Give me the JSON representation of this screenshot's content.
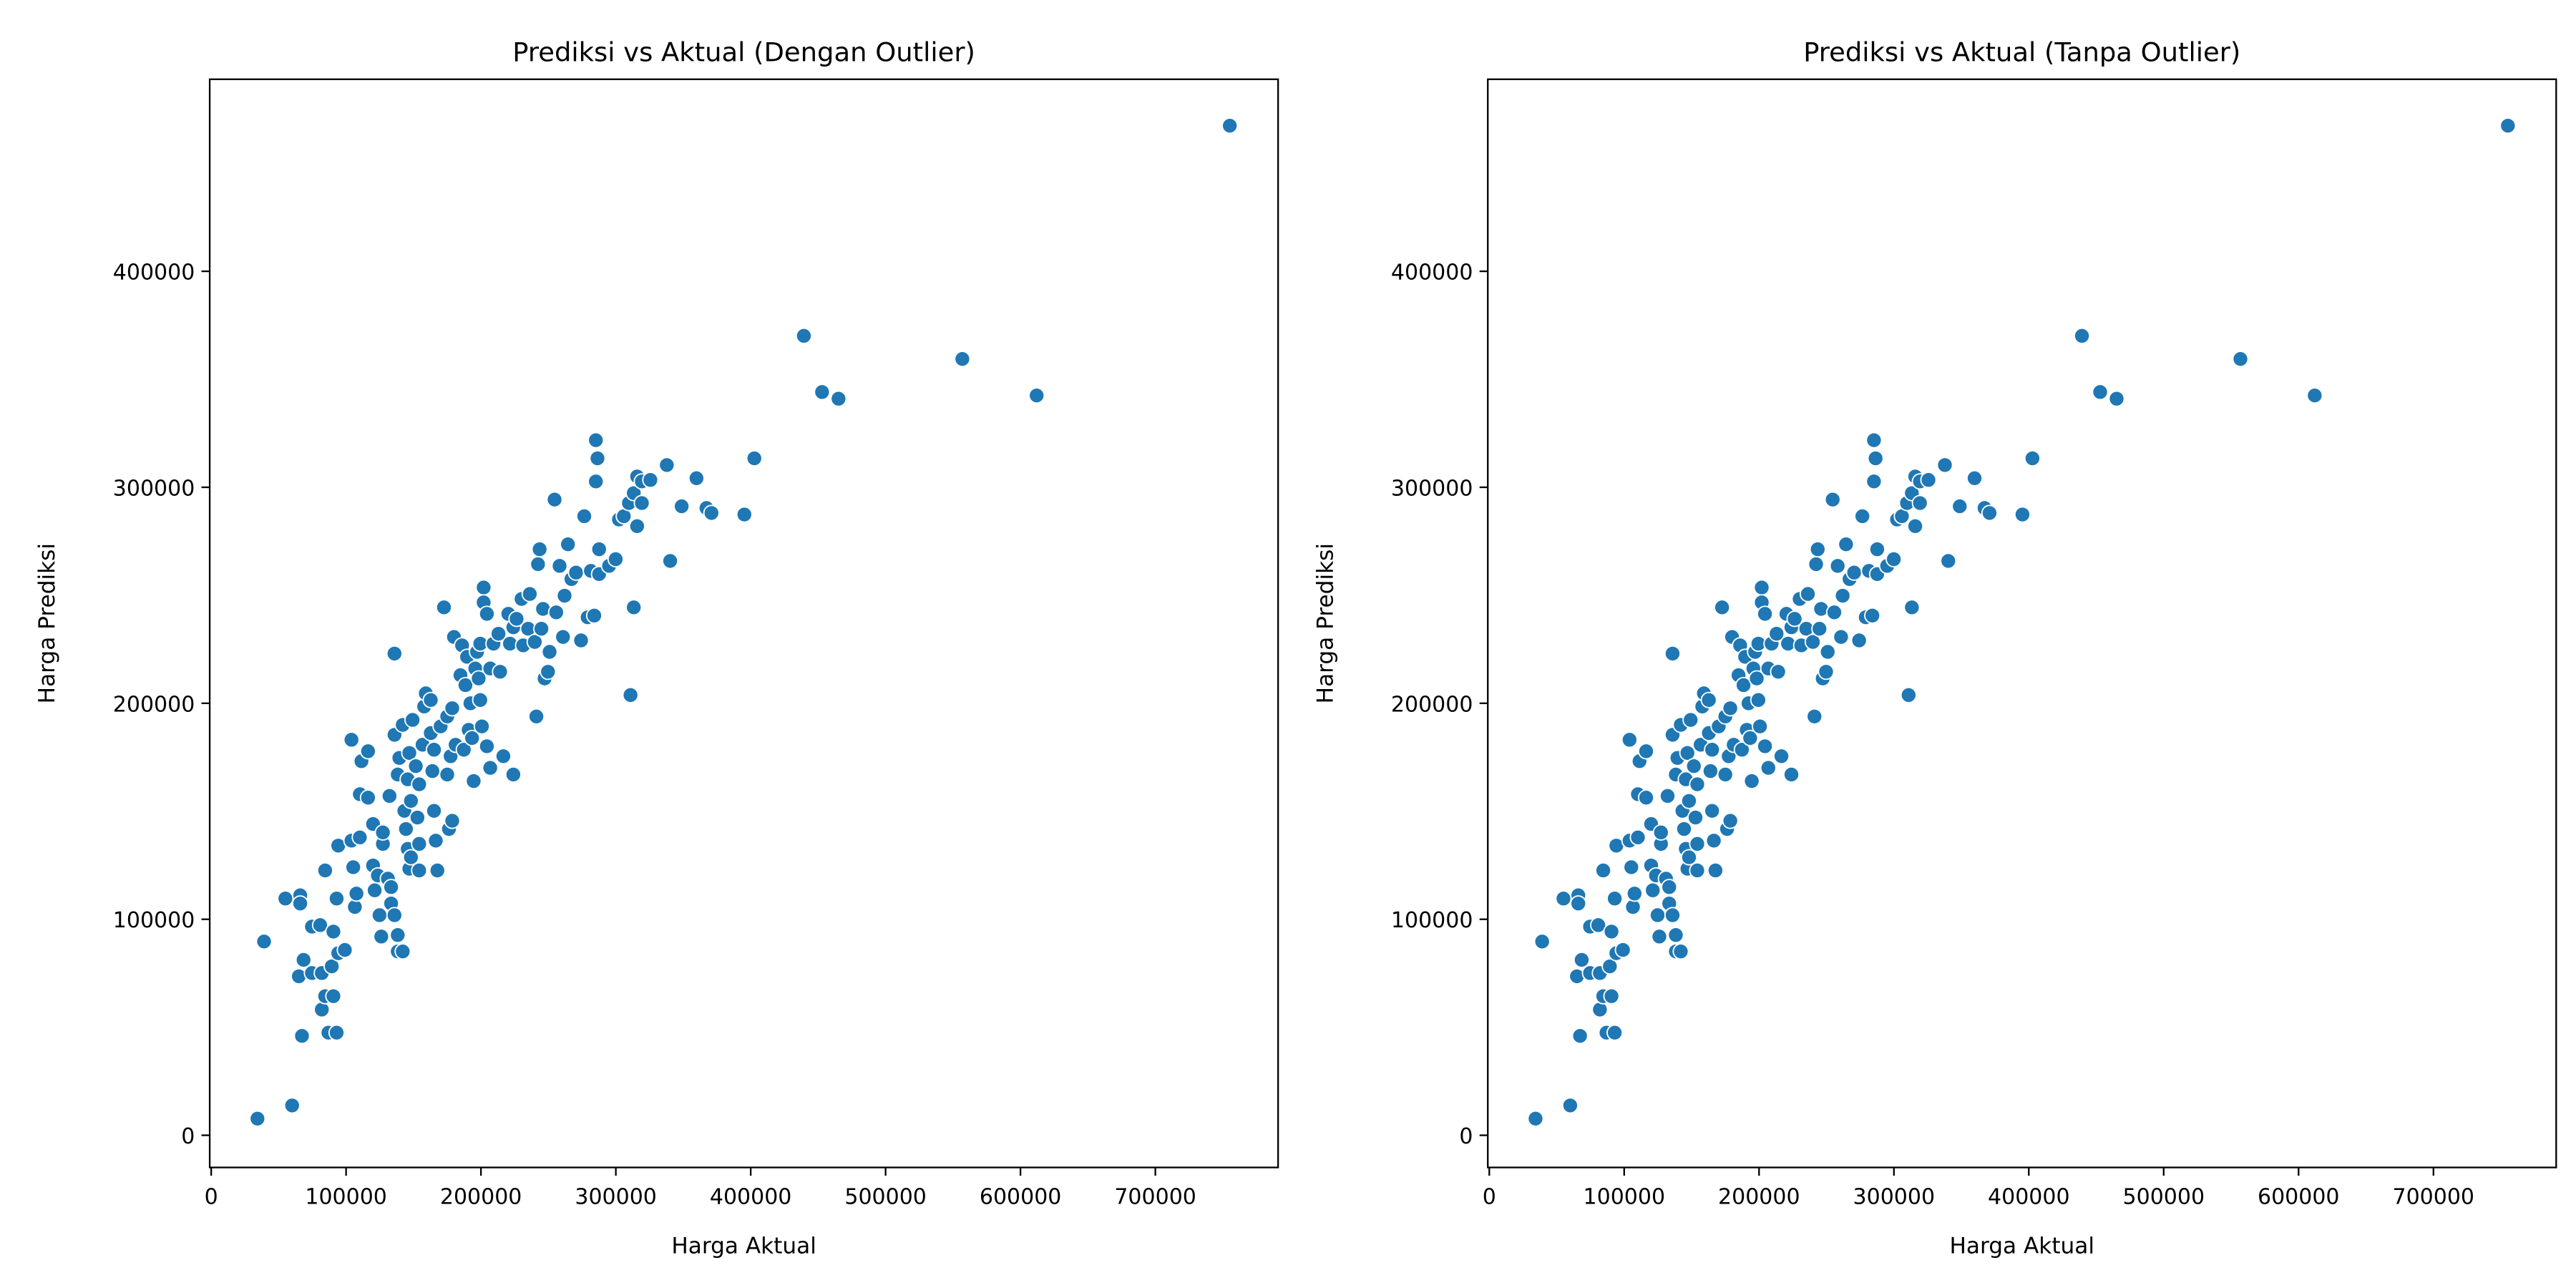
{
  "chart_data": [
    {
      "type": "scatter",
      "title": "Prediksi vs Aktual (Dengan Outlier)",
      "xlabel": "Harga Aktual",
      "ylabel": "Harga Prediksi",
      "color": "#1f77b4",
      "x": [
        34300,
        60000,
        39200,
        55000,
        66000,
        66000,
        65000,
        68500,
        67300,
        74700,
        74700,
        82000,
        80800,
        84500,
        82000,
        84500,
        86900,
        93000,
        90600,
        89400,
        94200,
        90600,
        99100,
        93000,
        94200,
        104000,
        104000,
        106500,
        107700,
        105300,
        110200,
        111400,
        110200,
        116300,
        116300,
        120000,
        120000,
        123600,
        121200,
        124800,
        126100,
        127300,
        127300,
        132200,
        131000,
        133400,
        133400,
        135900,
        138300,
        138300,
        142000,
        135900,
        135900,
        138300,
        139500,
        142000,
        143200,
        144400,
        145700,
        146900,
        148100,
        148100,
        145700,
        146900,
        149300,
        151700,
        154200,
        152900,
        154200,
        154200,
        156700,
        157900,
        159100,
        162800,
        162800,
        164000,
        165200,
        166500,
        167700,
        165200,
        170100,
        172600,
        175000,
        175000,
        177500,
        176300,
        178700,
        178700,
        181200,
        180000,
        184800,
        186000,
        187300,
        188500,
        189700,
        190900,
        192200,
        193400,
        194600,
        195800,
        197100,
        198300,
        199500,
        199500,
        200700,
        202000,
        202000,
        204400,
        206900,
        209300,
        204400,
        206900,
        213000,
        214200,
        216600,
        220300,
        221500,
        224000,
        224000,
        226400,
        230100,
        231300,
        235000,
        236200,
        239900,
        241100,
        242300,
        243500,
        244800,
        246000,
        247200,
        249700,
        250900,
        254600,
        255800,
        258300,
        260800,
        262000,
        264500,
        267100,
        270500,
        274200,
        276600,
        279100,
        281500,
        284000,
        285200,
        286400,
        285200,
        287600,
        287600,
        295000,
        299900,
        302300,
        305900,
        309700,
        310900,
        313300,
        313300,
        315800,
        315800,
        319300,
        319300,
        325600,
        337800,
        340300,
        348800,
        359800,
        367200,
        370900,
        395300,
        402700,
        439400,
        452900,
        465100,
        556900,
        612000,
        755200
      ],
      "y": [
        7700,
        13800,
        89700,
        109600,
        111100,
        107300,
        73600,
        81200,
        46000,
        75100,
        96600,
        75100,
        97300,
        122600,
        58200,
        64400,
        47500,
        47500,
        64400,
        78200,
        84300,
        94300,
        85800,
        109600,
        134100,
        136400,
        183100,
        105700,
        111900,
        124100,
        137900,
        173200,
        157900,
        177800,
        156300,
        144100,
        124900,
        120300,
        113400,
        101900,
        92000,
        134900,
        140200,
        157100,
        118800,
        114900,
        107300,
        101900,
        92700,
        85100,
        85100,
        223000,
        185400,
        167000,
        174700,
        190000,
        150200,
        141800,
        132600,
        123400,
        128700,
        154800,
        164800,
        177000,
        192300,
        170900,
        162500,
        147100,
        134900,
        122600,
        180800,
        198500,
        204600,
        201500,
        186200,
        168600,
        150200,
        136400,
        122600,
        178500,
        189300,
        244400,
        167000,
        193900,
        175500,
        141800,
        145600,
        197700,
        180800,
        230700,
        213000,
        226800,
        178500,
        208400,
        221500,
        187700,
        200000,
        183900,
        164000,
        216100,
        223800,
        211500,
        201500,
        227600,
        189300,
        253600,
        246700,
        241400,
        216100,
        227600,
        180100,
        170100,
        232200,
        214600,
        175500,
        241400,
        227600,
        167000,
        235200,
        239100,
        248300,
        226800,
        234500,
        250600,
        228400,
        193900,
        264400,
        271300,
        234500,
        243700,
        211500,
        214600,
        223800,
        294300,
        242100,
        263600,
        230700,
        249800,
        273600,
        257500,
        260500,
        229100,
        286600,
        239800,
        261300,
        240600,
        321800,
        313400,
        302700,
        259800,
        271300,
        263600,
        266700,
        285100,
        286600,
        292700,
        203800,
        297300,
        244400,
        305000,
        282000,
        302700,
        292700,
        303400,
        310300,
        265900,
        291200,
        304200,
        290400,
        288100,
        287400,
        313400,
        370100,
        344100,
        341000,
        359400,
        342500,
        467400
      ],
      "xlim": [
        -1100,
        791000
      ],
      "ylim": [
        -14900,
        488900
      ],
      "xticks": [
        0,
        100000,
        200000,
        300000,
        400000,
        500000,
        600000,
        700000
      ],
      "yticks": [
        0,
        100000,
        200000,
        300000,
        400000
      ]
    },
    {
      "type": "scatter",
      "title": "Prediksi vs Aktual (Tanpa Outlier)",
      "xlabel": "Harga Aktual",
      "ylabel": "Harga Prediksi",
      "color": "#1f77b4",
      "x": [
        34300,
        60000,
        39200,
        55000,
        66000,
        66000,
        65000,
        68500,
        67300,
        74700,
        74700,
        82000,
        80800,
        84500,
        82000,
        84500,
        86900,
        93000,
        90600,
        89400,
        94200,
        90600,
        99100,
        93000,
        94200,
        104000,
        104000,
        106500,
        107700,
        105300,
        110200,
        111400,
        110200,
        116300,
        116300,
        120000,
        120000,
        123600,
        121200,
        124800,
        126100,
        127300,
        127300,
        132200,
        131000,
        133400,
        133400,
        135900,
        138300,
        138300,
        142000,
        135900,
        135900,
        138300,
        139500,
        142000,
        143200,
        144400,
        145700,
        146900,
        148100,
        148100,
        145700,
        146900,
        149300,
        151700,
        154200,
        152900,
        154200,
        154200,
        156700,
        157900,
        159100,
        162800,
        162800,
        164000,
        165200,
        166500,
        167700,
        165200,
        170100,
        172600,
        175000,
        175000,
        177500,
        176300,
        178700,
        178700,
        181200,
        180000,
        184800,
        186000,
        187300,
        188500,
        189700,
        190900,
        192200,
        193400,
        194600,
        195800,
        197100,
        198300,
        199500,
        199500,
        200700,
        202000,
        202000,
        204400,
        206900,
        209300,
        204400,
        206900,
        213000,
        214200,
        216600,
        220300,
        221500,
        224000,
        224000,
        226400,
        230100,
        231300,
        235000,
        236200,
        239900,
        241100,
        242300,
        243500,
        244800,
        246000,
        247200,
        249700,
        250900,
        254600,
        255800,
        258300,
        260800,
        262000,
        264500,
        267100,
        270500,
        274200,
        276600,
        279100,
        281500,
        284000,
        285200,
        286400,
        285200,
        287600,
        287600,
        295000,
        299900,
        302300,
        305900,
        309700,
        310900,
        313300,
        313300,
        315800,
        315800,
        319300,
        319300,
        325600,
        337800,
        340300,
        348800,
        359800,
        367200,
        370900,
        395300,
        402700,
        439400,
        452900,
        465100,
        556900,
        612000,
        755200
      ],
      "y": [
        7700,
        13800,
        89700,
        109600,
        111100,
        107300,
        73600,
        81200,
        46000,
        75100,
        96600,
        75100,
        97300,
        122600,
        58200,
        64400,
        47500,
        47500,
        64400,
        78200,
        84300,
        94300,
        85800,
        109600,
        134100,
        136400,
        183100,
        105700,
        111900,
        124100,
        137900,
        173200,
        157900,
        177800,
        156300,
        144100,
        124900,
        120300,
        113400,
        101900,
        92000,
        134900,
        140200,
        157100,
        118800,
        114900,
        107300,
        101900,
        92700,
        85100,
        85100,
        223000,
        185400,
        167000,
        174700,
        190000,
        150200,
        141800,
        132600,
        123400,
        128700,
        154800,
        164800,
        177000,
        192300,
        170900,
        162500,
        147100,
        134900,
        122600,
        180800,
        198500,
        204600,
        201500,
        186200,
        168600,
        150200,
        136400,
        122600,
        178500,
        189300,
        244400,
        167000,
        193900,
        175500,
        141800,
        145600,
        197700,
        180800,
        230700,
        213000,
        226800,
        178500,
        208400,
        221500,
        187700,
        200000,
        183900,
        164000,
        216100,
        223800,
        211500,
        201500,
        227600,
        189300,
        253600,
        246700,
        241400,
        216100,
        227600,
        180100,
        170100,
        232200,
        214600,
        175500,
        241400,
        227600,
        167000,
        235200,
        239100,
        248300,
        226800,
        234500,
        250600,
        228400,
        193900,
        264400,
        271300,
        234500,
        243700,
        211500,
        214600,
        223800,
        294300,
        242100,
        263600,
        230700,
        249800,
        273600,
        257500,
        260500,
        229100,
        286600,
        239800,
        261300,
        240600,
        321800,
        313400,
        302700,
        259800,
        271300,
        263600,
        266700,
        285100,
        286600,
        292700,
        203800,
        297300,
        244400,
        305000,
        282000,
        302700,
        292700,
        303400,
        310300,
        265900,
        291200,
        304200,
        290400,
        288100,
        287400,
        313400,
        370100,
        344100,
        341000,
        359400,
        342500,
        467400
      ],
      "xlim": [
        -1100,
        791000
      ],
      "ylim": [
        -14900,
        488900
      ],
      "xticks": [
        0,
        100000,
        200000,
        300000,
        400000,
        500000,
        600000,
        700000
      ],
      "yticks": [
        0,
        100000,
        200000,
        300000,
        400000
      ]
    }
  ]
}
